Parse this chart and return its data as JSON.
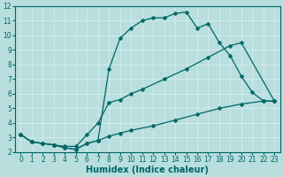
{
  "title": "",
  "xlabel": "Humidex (Indice chaleur)",
  "ylabel": "",
  "bg_color": "#b8dede",
  "grid_color": "#d4eeee",
  "line_color": "#006666",
  "xlim": [
    -0.5,
    23.5
  ],
  "ylim": [
    2,
    12
  ],
  "xticks": [
    0,
    1,
    2,
    3,
    4,
    5,
    6,
    7,
    8,
    9,
    10,
    11,
    12,
    13,
    14,
    15,
    16,
    17,
    18,
    19,
    20,
    21,
    22,
    23
  ],
  "yticks": [
    2,
    3,
    4,
    5,
    6,
    7,
    8,
    9,
    10,
    11,
    12
  ],
  "curve1_x": [
    0,
    1,
    2,
    3,
    4,
    5,
    6,
    7,
    8,
    9,
    10,
    11,
    12,
    13,
    14,
    15,
    16,
    17,
    18,
    19,
    20,
    21,
    22,
    23
  ],
  "curve1_y": [
    3.2,
    2.7,
    2.6,
    2.5,
    2.3,
    2.2,
    2.6,
    2.8,
    7.7,
    9.8,
    10.5,
    11.0,
    11.2,
    11.2,
    11.5,
    11.6,
    10.5,
    10.8,
    9.5,
    8.6,
    7.2,
    6.1,
    5.5,
    5.5
  ],
  "curve2_x": [
    0,
    1,
    2,
    3,
    4,
    5,
    6,
    7,
    8,
    9,
    10,
    11,
    13,
    15,
    17,
    19,
    20,
    23
  ],
  "curve2_y": [
    3.2,
    2.7,
    2.6,
    2.5,
    2.4,
    2.4,
    3.2,
    4.0,
    5.4,
    5.6,
    6.0,
    6.3,
    7.0,
    7.7,
    8.5,
    9.3,
    9.5,
    5.5
  ],
  "curve3_x": [
    0,
    1,
    2,
    3,
    4,
    5,
    6,
    7,
    8,
    9,
    10,
    12,
    14,
    16,
    18,
    20,
    22,
    23
  ],
  "curve3_y": [
    3.2,
    2.7,
    2.6,
    2.5,
    2.3,
    2.2,
    2.6,
    2.8,
    3.1,
    3.3,
    3.5,
    3.8,
    4.2,
    4.6,
    5.0,
    5.3,
    5.5,
    5.5
  ],
  "marker_size": 2.5,
  "line_width": 0.9,
  "xlabel_fontsize": 7,
  "tick_fontsize": 5.5
}
